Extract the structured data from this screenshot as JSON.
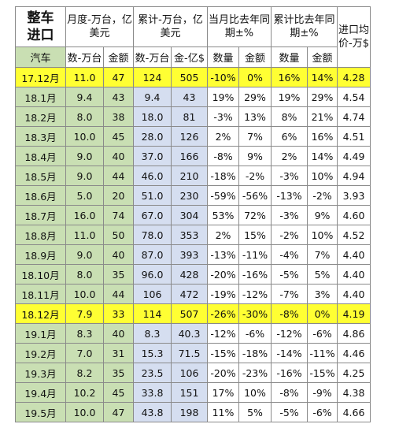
{
  "title": {
    "line1": "整车",
    "line2": "进口"
  },
  "headers": {
    "monthly": "月度-万台，亿美元",
    "cumulative": "累计-万台，亿美元",
    "month_yoy": "当月比去年同期±%",
    "cum_yoy": "累计比去年同期±%",
    "avg_price": "进口均价-万$",
    "row_label": "汽车",
    "sub": [
      "数-万台",
      "金额",
      "数-万台",
      "金-亿$",
      "数量",
      "金额",
      "数量",
      "金额"
    ]
  },
  "rows": [
    {
      "month": "17.12月",
      "qty": "11.0",
      "amt": "47",
      "cum_qty": "124",
      "cum_amt": "505",
      "m_qty": "-10%",
      "m_amt": "0%",
      "c_qty": "16%",
      "c_amt": "14%",
      "price": "4.28",
      "highlight": true
    },
    {
      "month": "18.1月",
      "qty": "9.4",
      "amt": "43",
      "cum_qty": "9.4",
      "cum_amt": "43",
      "m_qty": "19%",
      "m_amt": "29%",
      "c_qty": "19%",
      "c_amt": "29%",
      "price": "4.54"
    },
    {
      "month": "18.2月",
      "qty": "8.0",
      "amt": "38",
      "cum_qty": "18.0",
      "cum_amt": "81",
      "m_qty": "-3%",
      "m_amt": "13%",
      "c_qty": "8%",
      "c_amt": "21%",
      "price": "4.74"
    },
    {
      "month": "18.3月",
      "qty": "10.0",
      "amt": "45",
      "cum_qty": "28.0",
      "cum_amt": "126",
      "m_qty": "2%",
      "m_amt": "7%",
      "c_qty": "6%",
      "c_amt": "16%",
      "price": "4.51"
    },
    {
      "month": "18.4月",
      "qty": "9.0",
      "amt": "40",
      "cum_qty": "37.0",
      "cum_amt": "166",
      "m_qty": "-8%",
      "m_amt": "9%",
      "c_qty": "2%",
      "c_amt": "14%",
      "price": "4.49"
    },
    {
      "month": "18.5月",
      "qty": "9.0",
      "amt": "44",
      "cum_qty": "46.0",
      "cum_amt": "210",
      "m_qty": "-18%",
      "m_amt": "-2%",
      "c_qty": "-3%",
      "c_amt": "10%",
      "price": "4.94"
    },
    {
      "month": "18.6月",
      "qty": "5.0",
      "amt": "20",
      "cum_qty": "51.0",
      "cum_amt": "230",
      "m_qty": "-59%",
      "m_amt": "-56%",
      "c_qty": "-13%",
      "c_amt": "-2%",
      "price": "3.93"
    },
    {
      "month": "18.7月",
      "qty": "16.0",
      "amt": "74",
      "cum_qty": "67.0",
      "cum_amt": "304",
      "m_qty": "53%",
      "m_amt": "72%",
      "c_qty": "-3%",
      "c_amt": "9%",
      "price": "4.60"
    },
    {
      "month": "18.8月",
      "qty": "11.0",
      "amt": "50",
      "cum_qty": "78.0",
      "cum_amt": "353",
      "m_qty": "2%",
      "m_amt": "15%",
      "c_qty": "-2%",
      "c_amt": "10%",
      "price": "4.52"
    },
    {
      "month": "18.9月",
      "qty": "9.0",
      "amt": "40",
      "cum_qty": "87.0",
      "cum_amt": "393",
      "m_qty": "-13%",
      "m_amt": "-11%",
      "c_qty": "-4%",
      "c_amt": "7%",
      "price": "4.40"
    },
    {
      "month": "18.10月",
      "qty": "8.0",
      "amt": "35",
      "cum_qty": "96.0",
      "cum_amt": "428",
      "m_qty": "-20%",
      "m_amt": "-16%",
      "c_qty": "-5%",
      "c_amt": "5%",
      "price": "4.40"
    },
    {
      "month": "18.11月",
      "qty": "10.0",
      "amt": "44",
      "cum_qty": "106",
      "cum_amt": "472",
      "m_qty": "-19%",
      "m_amt": "-12%",
      "c_qty": "-7%",
      "c_amt": "3%",
      "price": "4.40"
    },
    {
      "month": "18.12月",
      "qty": "7.9",
      "amt": "33",
      "cum_qty": "114",
      "cum_amt": "507",
      "m_qty": "-26%",
      "m_amt": "-30%",
      "c_qty": "-8%",
      "c_amt": "0%",
      "price": "4.19",
      "highlight": true
    },
    {
      "month": "19.1月",
      "qty": "8.3",
      "amt": "40",
      "cum_qty": "8.3",
      "cum_amt": "40.3",
      "m_qty": "-12%",
      "m_amt": "-6%",
      "c_qty": "-12%",
      "c_amt": "-6%",
      "price": "4.86"
    },
    {
      "month": "19.2月",
      "qty": "7.0",
      "amt": "31",
      "cum_qty": "15.3",
      "cum_amt": "71.5",
      "m_qty": "-15%",
      "m_amt": "-18%",
      "c_qty": "-14%",
      "c_amt": "-11%",
      "price": "4.46"
    },
    {
      "month": "19.3月",
      "qty": "8.2",
      "amt": "35",
      "cum_qty": "23.5",
      "cum_amt": "106",
      "m_qty": "-20%",
      "m_amt": "-23%",
      "c_qty": "-16%",
      "c_amt": "-15%",
      "price": "4.25"
    },
    {
      "month": "19.4月",
      "qty": "10.2",
      "amt": "45",
      "cum_qty": "33.8",
      "cum_amt": "151",
      "m_qty": "17%",
      "m_amt": "10%",
      "c_qty": "-8%",
      "c_amt": "-9%",
      "price": "4.38"
    },
    {
      "month": "19.5月",
      "qty": "10.0",
      "amt": "47",
      "cum_qty": "43.8",
      "cum_amt": "198",
      "m_qty": "11%",
      "m_amt": "5%",
      "c_qty": "-5%",
      "c_amt": "-6%",
      "price": "4.66"
    }
  ],
  "colors": {
    "title_red": "#e0201b",
    "negative_red": "#e0201b",
    "quantity_blue": "#2b6cb0",
    "month_green": "#c9dfb3",
    "cum_blue": "#d5def0",
    "highlight_yellow": "#ffff33"
  }
}
